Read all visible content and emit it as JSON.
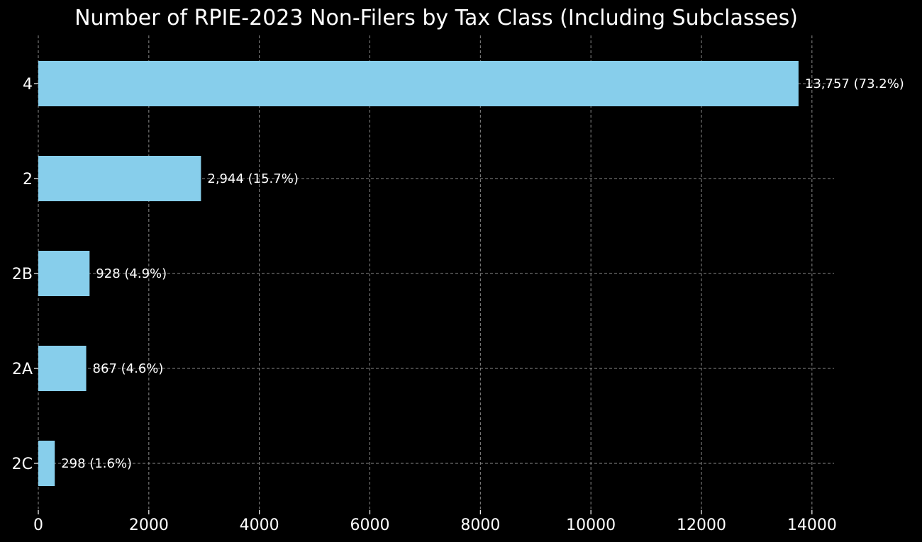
{
  "chart_data": {
    "type": "bar",
    "orientation": "horizontal",
    "title": "Number of RPIE-2023 Non-Filers by Tax Class (Including Subclasses)",
    "xlabel": "",
    "ylabel": "",
    "categories": [
      "4",
      "2",
      "2B",
      "2A",
      "2C"
    ],
    "values": [
      13757,
      2944,
      928,
      867,
      298
    ],
    "data_labels": [
      "13,757 (73.2%)",
      "2,944 (15.7%)",
      "928 (4.9%)",
      "867 (4.6%)",
      "298 (1.6%)"
    ],
    "xticks": [
      "0",
      "2000",
      "4000",
      "6000",
      "8000",
      "10000",
      "12000",
      "14000"
    ],
    "xlim": [
      0,
      14400
    ],
    "grid": true,
    "colors": {
      "background": "#000000",
      "bar": "#87ceeb",
      "grid": "#8a8a8a",
      "text": "#ffffff"
    }
  }
}
